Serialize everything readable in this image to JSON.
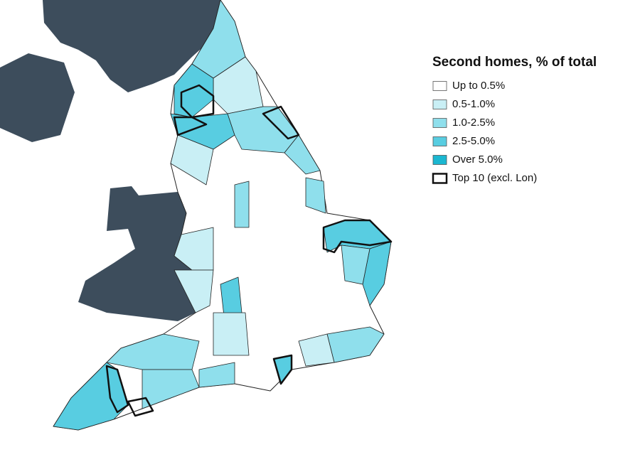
{
  "legend": {
    "title": "Second homes, % of total",
    "items": [
      {
        "label": "Up to 0.5%",
        "color": "#ffffff"
      },
      {
        "label": "0.5-1.0%",
        "color": "#c9eff5"
      },
      {
        "label": "1.0-2.5%",
        "color": "#8fdfec"
      },
      {
        "label": "2.5-5.0%",
        "color": "#58cde1"
      },
      {
        "label": "Over 5.0%",
        "color": "#1bb7d1"
      },
      {
        "label": "Top 10 (excl. Lon)",
        "color": "#ffffff",
        "outline": true
      }
    ]
  }
}
